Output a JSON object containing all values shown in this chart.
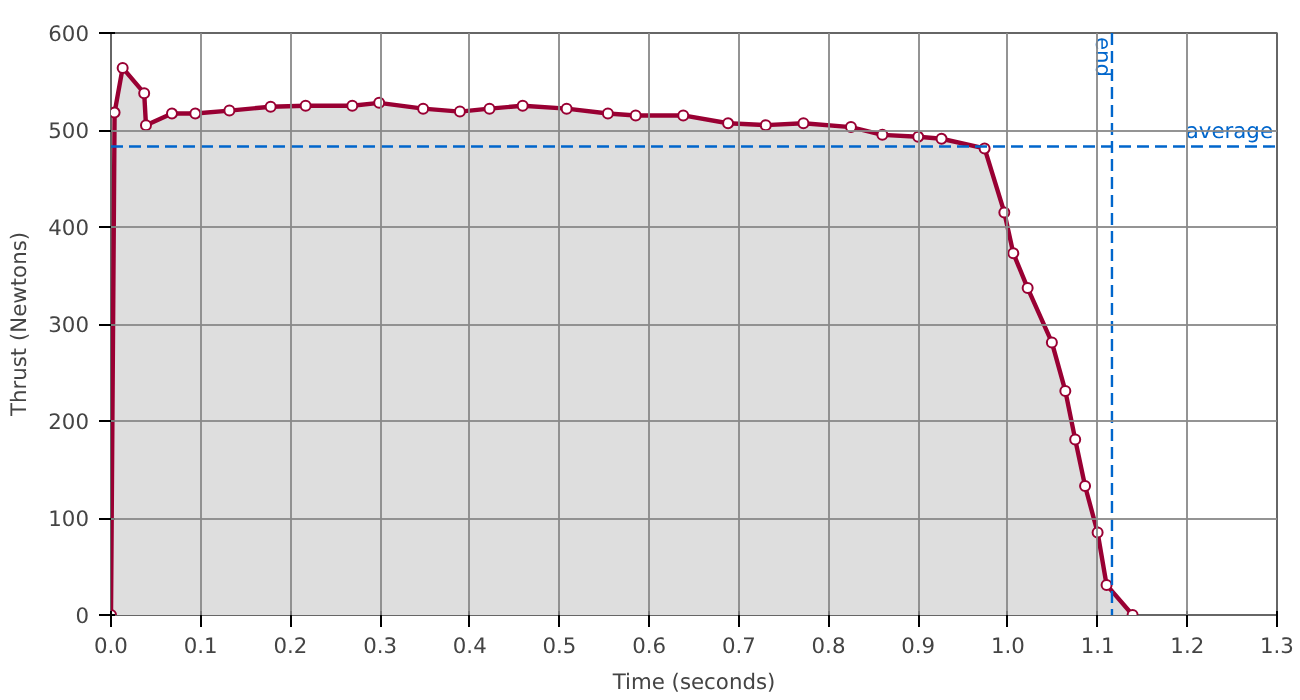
{
  "chart_data": {
    "type": "area",
    "xlabel": "Time (seconds)",
    "ylabel": "Thrust (Newtons)",
    "x": [
      0,
      0.004,
      0.013,
      0.037,
      0.039,
      0.068,
      0.094,
      0.132,
      0.178,
      0.217,
      0.269,
      0.299,
      0.348,
      0.389,
      0.422,
      0.459,
      0.508,
      0.554,
      0.585,
      0.638,
      0.688,
      0.73,
      0.772,
      0.825,
      0.86,
      0.9,
      0.926,
      0.974,
      0.996,
      1.006,
      1.022,
      1.049,
      1.064,
      1.075,
      1.086,
      1.1,
      1.11,
      1.139
    ],
    "series": [
      {
        "color": "#990033",
        "values": [
          0,
          518,
          564,
          538,
          505,
          517,
          517,
          520,
          524,
          525,
          525,
          528,
          522,
          519,
          522,
          525,
          522,
          517,
          515,
          515,
          507,
          505,
          507,
          503,
          495,
          493,
          491,
          481,
          415,
          373,
          337,
          281,
          231,
          181,
          133,
          85,
          31,
          0
        ]
      }
    ],
    "marker": "circle",
    "line_style": "solid",
    "xlim": [
      0,
      1.3
    ],
    "xticks": [
      {
        "value": 0,
        "label": "0.0"
      },
      0.1,
      0.2,
      0.3,
      0.4,
      0.5,
      0.6,
      0.7,
      0.8,
      0.9,
      {
        "value": 1,
        "label": "1.0"
      },
      1.1,
      1.2,
      1.3
    ],
    "ylim": [
      0,
      600
    ],
    "yticks": [
      0,
      100,
      200,
      300,
      400,
      500,
      600
    ],
    "grid": true,
    "ref_lines": [
      {
        "axis": "y",
        "value": 483,
        "label": "average",
        "color": "#0066cc",
        "line_style": "dashed"
      },
      {
        "axis": "x",
        "value": 1.116,
        "label": "end",
        "color": "#0066cc",
        "line_style": "dashed"
      }
    ]
  }
}
